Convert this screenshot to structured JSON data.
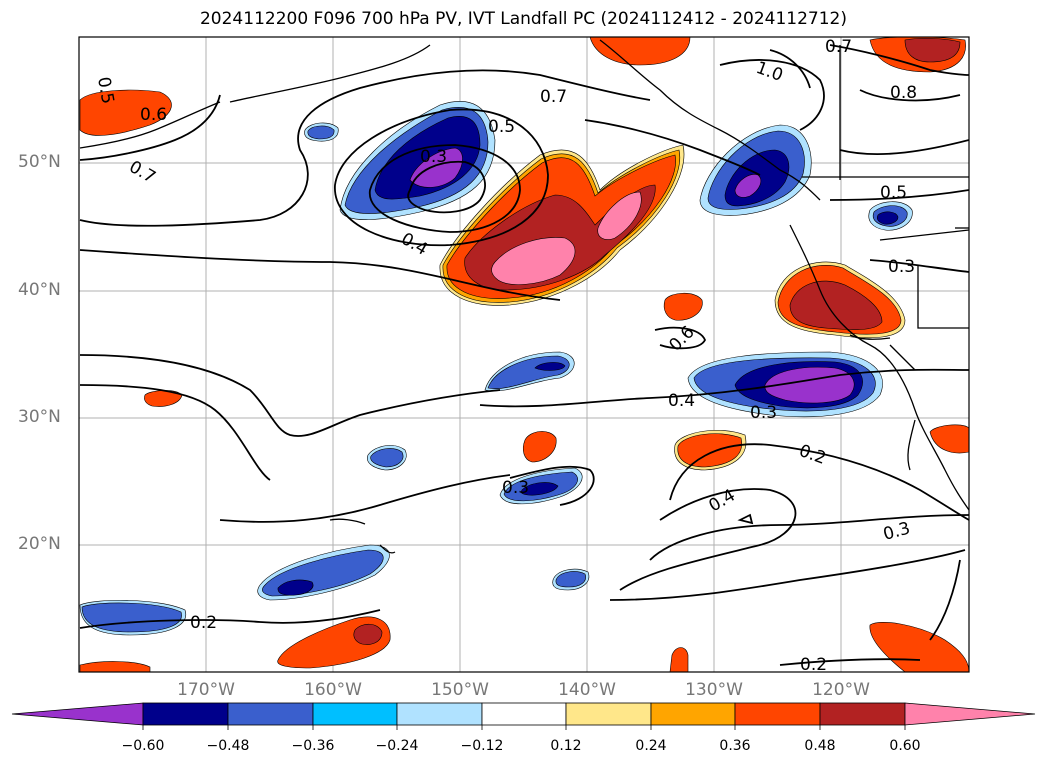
{
  "title": "2024112200 F096 700 hPa PV, IVT Landfall PC (2024112412 - 2024112712)",
  "lat_labels": [
    "50°N",
    "40°N",
    "30°N",
    "20°N"
  ],
  "lon_labels": [
    "170°W",
    "160°W",
    "150°W",
    "140°W",
    "130°W",
    "120°W"
  ],
  "colorbar": {
    "ticks": [
      "−0.60",
      "−0.48",
      "−0.36",
      "−0.24",
      "−0.12",
      "0.12",
      "0.24",
      "0.36",
      "0.48",
      "0.60"
    ],
    "colors": [
      "#9932cc",
      "#00008b",
      "#3a5fcd",
      "#00bfff",
      "#b0e2ff",
      "#ffffff",
      "#ffe78a",
      "#ffa500",
      "#ff4500",
      "#b22222",
      "#ff82ab"
    ]
  },
  "contour_labels": [
    "0.5",
    "0.6",
    "0.7",
    "0.3",
    "0.5",
    "0.4",
    "0.7",
    "0.8",
    "1.0",
    "0.7",
    "0.5",
    "0.3",
    "0.6",
    "0.4",
    "0.3",
    "0.2",
    "0.3",
    "0.4",
    "0.3",
    "0.2",
    "0.2"
  ]
}
